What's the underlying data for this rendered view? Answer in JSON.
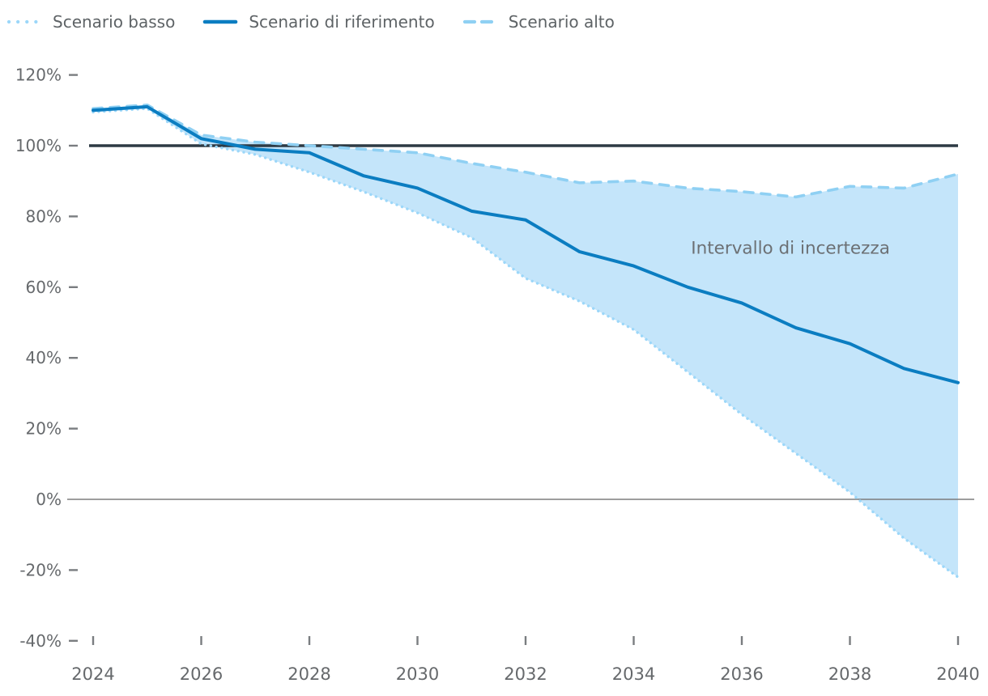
{
  "chart_data": {
    "type": "line",
    "title": "",
    "xlabel": "",
    "ylabel": "",
    "xlim": [
      2024,
      2040
    ],
    "ylim": [
      -40,
      120
    ],
    "grid": false,
    "legend_position": "top-left",
    "x": [
      2024,
      2025,
      2026,
      2027,
      2028,
      2029,
      2030,
      2031,
      2032,
      2033,
      2034,
      2035,
      2036,
      2037,
      2038,
      2039,
      2040
    ],
    "series": [
      {
        "name": "Scenario basso",
        "style": "dotted",
        "color": "#9cd7f9",
        "values": [
          109.5,
          110.5,
          100.5,
          97.5,
          92.5,
          87,
          81,
          74,
          62.5,
          56,
          48,
          36,
          24,
          13,
          2,
          -11,
          -22
        ]
      },
      {
        "name": "Scenario di riferimento",
        "style": "solid",
        "color": "#0b7dc1",
        "values": [
          110,
          111,
          102,
          99,
          98,
          91.5,
          88,
          81.5,
          79,
          70,
          66,
          60,
          55.5,
          48.5,
          44,
          37,
          33
        ]
      },
      {
        "name": "Scenario alto",
        "style": "dashed",
        "color": "#8fd0f3",
        "values": [
          110.5,
          111.5,
          103,
          101,
          100,
          99,
          98,
          95,
          92.5,
          89.5,
          90,
          88,
          87,
          85.5,
          88.5,
          88,
          92
        ]
      }
    ],
    "band": {
      "upper_series": 2,
      "lower_series": 0,
      "fill": "#c4e5fa"
    },
    "annotation": {
      "text": "Intervallo di incertezza",
      "x": 2036.9,
      "y": 71,
      "color": "#6c7074"
    },
    "reference_lines": [
      {
        "value": 100,
        "color": "#2d3a44",
        "width": 3.5
      },
      {
        "value": 0,
        "color": "#7d7d7d",
        "width": 1.5
      }
    ],
    "y_ticks": [
      {
        "label": "120%",
        "value": 120
      },
      {
        "label": "100%",
        "value": 100
      },
      {
        "label": "80%",
        "value": 80
      },
      {
        "label": "60%",
        "value": 60
      },
      {
        "label": "40%",
        "value": 40
      },
      {
        "label": "20%",
        "value": 20
      },
      {
        "label": "0%",
        "value": 0
      },
      {
        "label": "-20%",
        "value": -20
      },
      {
        "label": "-40%",
        "value": -40
      }
    ],
    "x_ticks": [
      {
        "label": "2024",
        "value": 2024
      },
      {
        "label": "2026",
        "value": 2026
      },
      {
        "label": "2028",
        "value": 2028
      },
      {
        "label": "2030",
        "value": 2030
      },
      {
        "label": "2032",
        "value": 2032
      },
      {
        "label": "2034",
        "value": 2034
      },
      {
        "label": "2036",
        "value": 2036
      },
      {
        "label": "2038",
        "value": 2038
      },
      {
        "label": "2040",
        "value": 2040
      }
    ],
    "tick_color": "#7a7d80",
    "tick_label_color": "#66696c"
  }
}
